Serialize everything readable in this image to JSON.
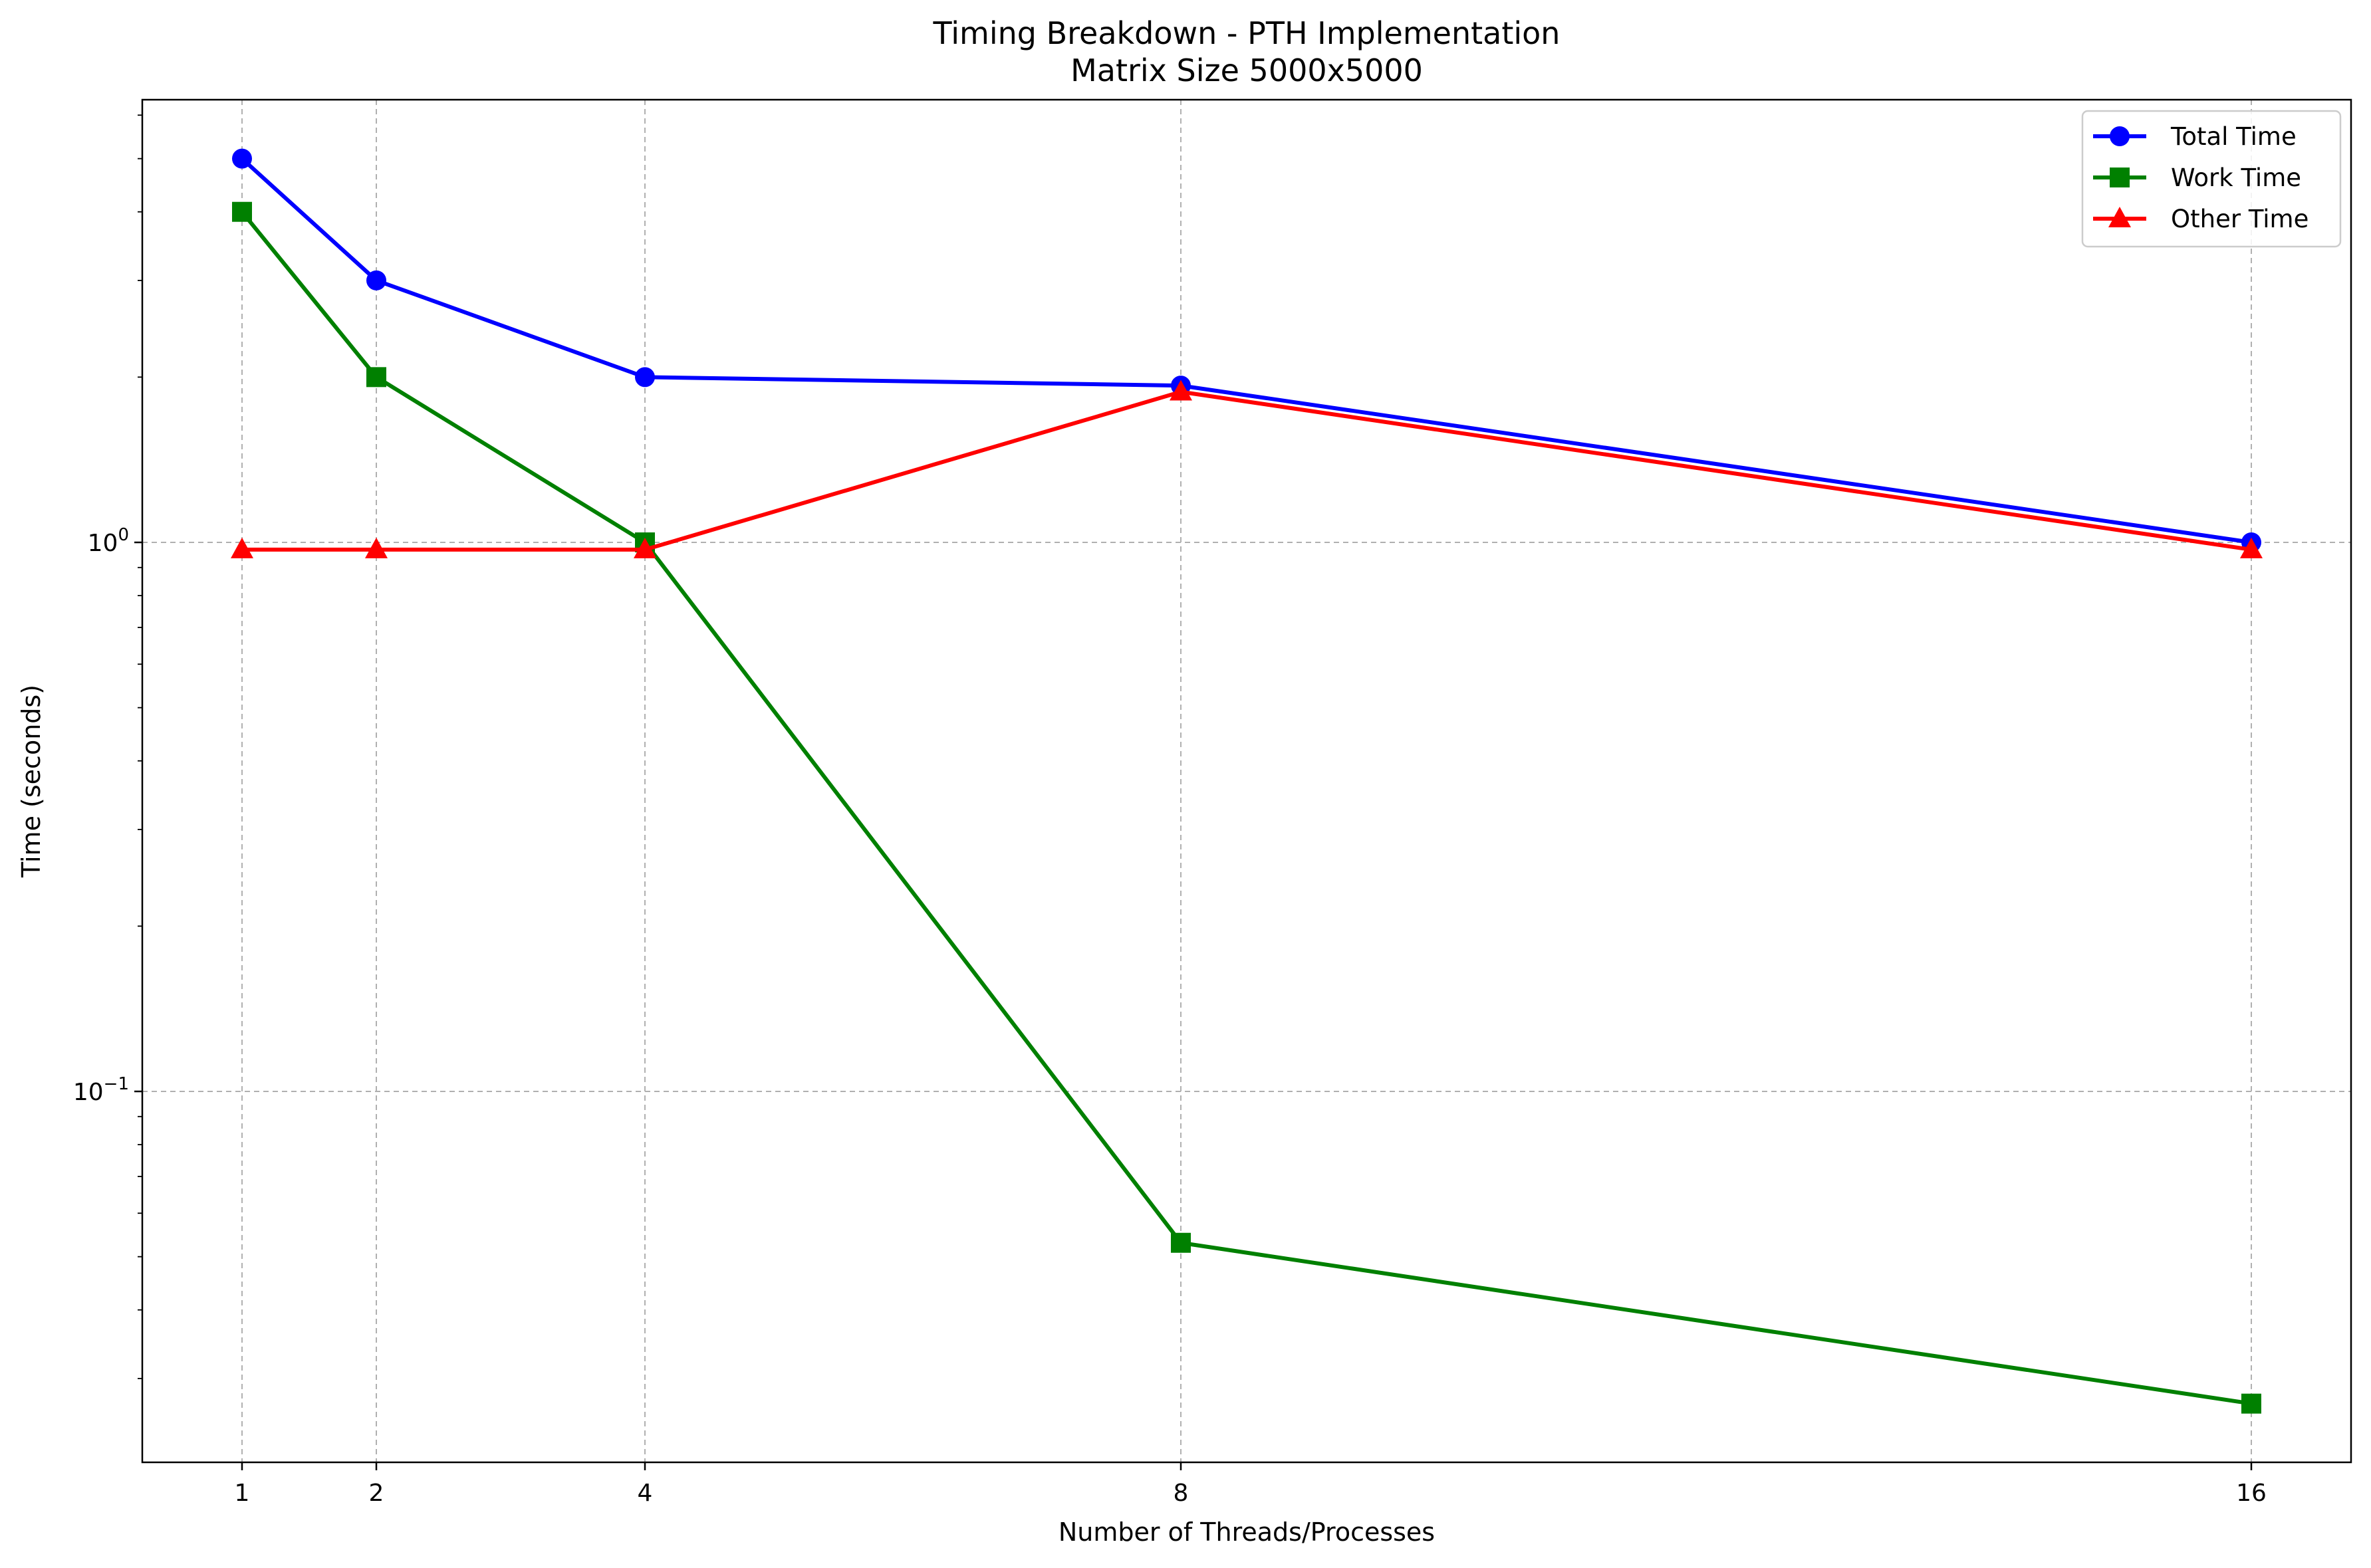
{
  "chart_data": {
    "type": "line",
    "title": "Timing Breakdown - PTH Implementation",
    "subtitle": "Matrix Size 5000x5000",
    "xlabel": "Number of Threads/Processes",
    "ylabel": "Time (seconds)",
    "x": [
      1,
      2,
      4,
      8,
      16
    ],
    "x_tick_labels": [
      "1",
      "2",
      "4",
      "8",
      "16"
    ],
    "y_scale": "log",
    "ylim": [
      0.021,
      6.0
    ],
    "y_ticks": [
      {
        "value": 1.0,
        "base": "10",
        "exponent": "0"
      },
      {
        "value": 0.1,
        "base": "10",
        "exponent": "−1"
      }
    ],
    "grid": true,
    "legend_position": "top-right",
    "series": [
      {
        "name": "Total Time",
        "color": "#0000ff",
        "marker": "circle",
        "values": [
          5.0,
          3.0,
          2.0,
          1.93,
          1.0
        ]
      },
      {
        "name": "Work Time",
        "color": "#008000",
        "marker": "square",
        "values": [
          4.0,
          2.0,
          1.0,
          0.053,
          0.027
        ]
      },
      {
        "name": "Other Time",
        "color": "#ff0000",
        "marker": "triangle",
        "values": [
          0.97,
          0.97,
          0.97,
          1.88,
          0.97
        ]
      }
    ]
  }
}
